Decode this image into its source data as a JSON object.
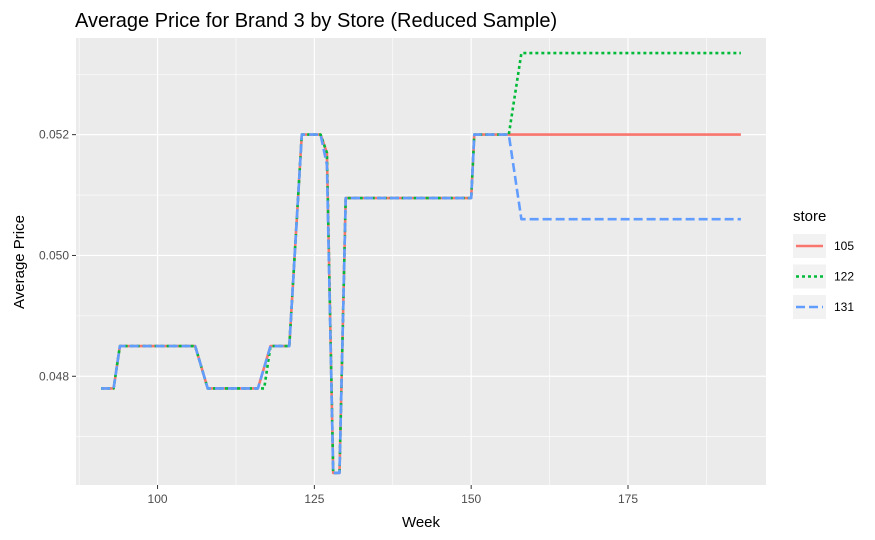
{
  "chart_data": {
    "type": "line",
    "title": "Average Price for Brand 3 by Store (Reduced Sample)",
    "xlabel": "Week",
    "ylabel": "Average Price",
    "xlim": [
      87,
      197
    ],
    "ylim": [
      0.0462,
      0.0536
    ],
    "x_ticks": [
      100,
      125,
      150,
      175
    ],
    "x_tick_labels": [
      "100",
      "125",
      "150",
      "175"
    ],
    "x_minor_ticks": [
      87.5,
      112.5,
      137.5,
      162.5,
      187.5
    ],
    "y_ticks": [
      0.048,
      0.05,
      0.052
    ],
    "y_tick_labels": [
      "0.048",
      "0.050",
      "0.052"
    ],
    "y_minor_ticks": [
      0.047,
      0.049,
      0.051,
      0.053
    ],
    "grid": true,
    "background": "#ebebeb",
    "legend": {
      "title": "store",
      "placement": "right"
    },
    "series": [
      {
        "name": "105",
        "color": "#F8766D",
        "dash": "solid",
        "points": [
          [
            91,
            0.0478
          ],
          [
            93,
            0.0478
          ],
          [
            94,
            0.0485
          ],
          [
            106,
            0.0485
          ],
          [
            108,
            0.0478
          ],
          [
            116,
            0.0478
          ],
          [
            118,
            0.0485
          ],
          [
            121,
            0.0485
          ],
          [
            123,
            0.052
          ],
          [
            126,
            0.052
          ],
          [
            127,
            0.0517
          ],
          [
            128,
            0.0464
          ],
          [
            129,
            0.0464
          ],
          [
            130,
            0.05095
          ],
          [
            150,
            0.05095
          ],
          [
            150.5,
            0.052
          ],
          [
            193,
            0.052
          ]
        ]
      },
      {
        "name": "122",
        "color": "#00BA38",
        "dash": "dotted",
        "points": [
          [
            91,
            0.0478
          ],
          [
            93,
            0.0478
          ],
          [
            94,
            0.0485
          ],
          [
            106,
            0.0485
          ],
          [
            108,
            0.0478
          ],
          [
            117,
            0.0478
          ],
          [
            118,
            0.0485
          ],
          [
            121,
            0.0485
          ],
          [
            123,
            0.052
          ],
          [
            126,
            0.052
          ],
          [
            127,
            0.0517
          ],
          [
            128,
            0.0464
          ],
          [
            129,
            0.0464
          ],
          [
            130,
            0.05095
          ],
          [
            150,
            0.05095
          ],
          [
            150.5,
            0.052
          ],
          [
            156,
            0.052
          ],
          [
            158,
            0.05335
          ],
          [
            193,
            0.05335
          ]
        ]
      },
      {
        "name": "131",
        "color": "#619CFF",
        "dash": "dashed",
        "points": [
          [
            91,
            0.0478
          ],
          [
            93,
            0.0478
          ],
          [
            94,
            0.0485
          ],
          [
            106,
            0.0485
          ],
          [
            108,
            0.0478
          ],
          [
            116,
            0.0478
          ],
          [
            118,
            0.0485
          ],
          [
            121,
            0.0485
          ],
          [
            123,
            0.052
          ],
          [
            126,
            0.052
          ],
          [
            127,
            0.0515
          ],
          [
            128,
            0.0464
          ],
          [
            129,
            0.0464
          ],
          [
            130,
            0.05095
          ],
          [
            150,
            0.05095
          ],
          [
            150.5,
            0.052
          ],
          [
            156,
            0.052
          ],
          [
            158,
            0.0506
          ],
          [
            193,
            0.0506
          ]
        ]
      }
    ]
  }
}
